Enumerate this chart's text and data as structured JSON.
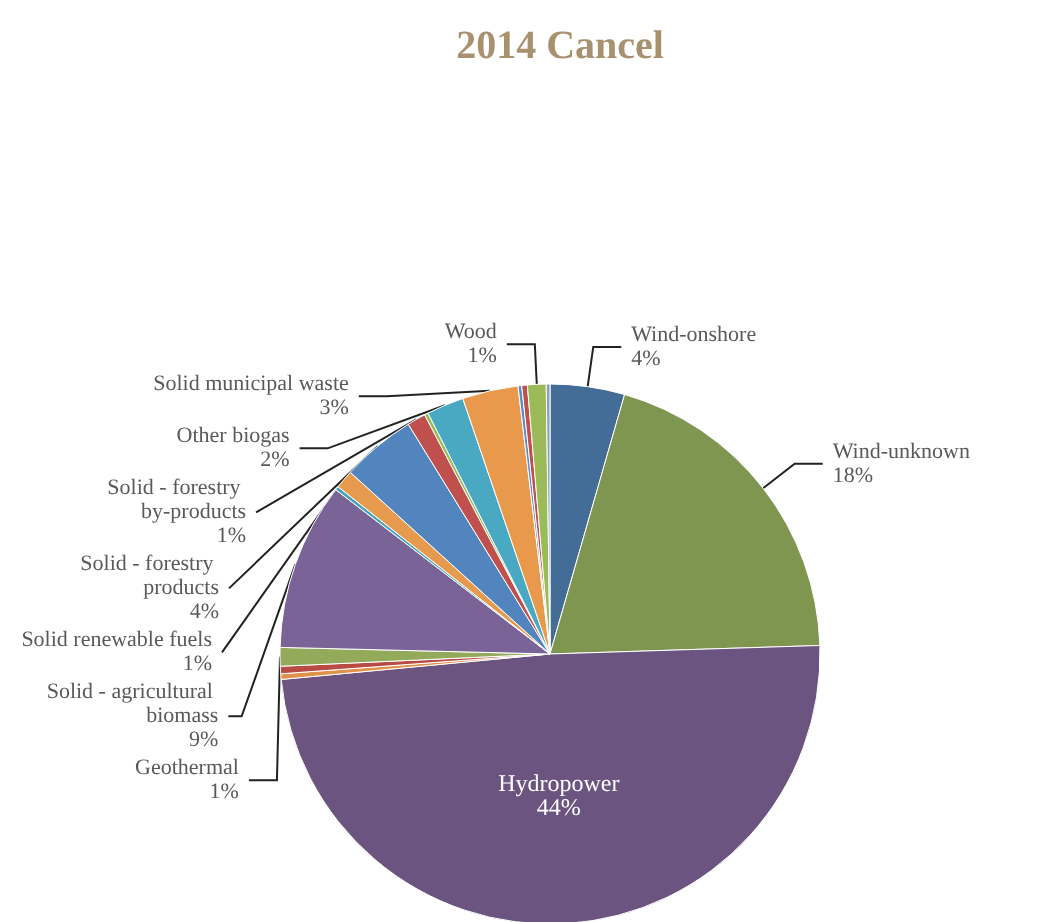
{
  "chart_data": {
    "type": "pie",
    "title": "2014 Cancel",
    "categories": [
      "Wind-onshore",
      "Wind-unknown",
      "Hydropower",
      null,
      null,
      "Geothermal",
      "Solid - agricultural biomass",
      null,
      "Solid renewable fuels",
      "Solid - forestry products",
      "Solid - forestry by-products",
      null,
      "Other biogas",
      "Solid municipal waste",
      null,
      null,
      "Wood",
      null
    ],
    "values": [
      4,
      18,
      44,
      0.3,
      0.4,
      1,
      9,
      0.2,
      1,
      4,
      1,
      0.2,
      2,
      3,
      0.2,
      0.3,
      1,
      0.2
    ],
    "value_labels": [
      "4%",
      "18%",
      "44%",
      null,
      null,
      "1%",
      "9%",
      null,
      "1%",
      "4%",
      "1%",
      null,
      "2%",
      "3%",
      null,
      null,
      "1%",
      null
    ],
    "colors": [
      "#436c97",
      "#7f9650",
      "#6b5580",
      "#e0914a",
      "#b84c45",
      "#93aa5a",
      "#7a6497",
      "#47a3bd",
      "#e69a4e",
      "#5285bd",
      "#c0504d",
      "#9bbb59",
      "#4aa9c2",
      "#e8994c",
      "#5b8ec9",
      "#c0504d",
      "#9bbb59",
      "#8da0b8"
    ]
  }
}
